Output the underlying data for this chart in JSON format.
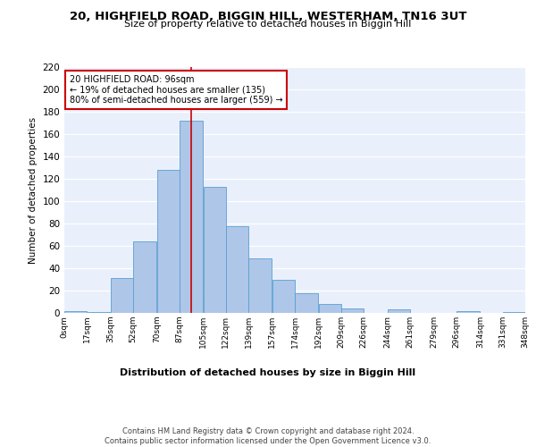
{
  "title": "20, HIGHFIELD ROAD, BIGGIN HILL, WESTERHAM, TN16 3UT",
  "subtitle": "Size of property relative to detached houses in Biggin Hill",
  "xlabel": "Distribution of detached houses by size in Biggin Hill",
  "ylabel": "Number of detached properties",
  "bar_color": "#aec6e8",
  "bar_edge_color": "#5a9fd4",
  "background_color": "#eaf0fb",
  "grid_color": "#ffffff",
  "annotation_box_color": "#ffffff",
  "annotation_box_edge": "#cc0000",
  "vline_color": "#cc0000",
  "vline_x": 96,
  "annotation_text": "20 HIGHFIELD ROAD: 96sqm\n← 19% of detached houses are smaller (135)\n80% of semi-detached houses are larger (559) →",
  "bins": [
    0,
    17,
    35,
    52,
    70,
    87,
    105,
    122,
    139,
    157,
    174,
    192,
    209,
    226,
    244,
    261,
    279,
    296,
    314,
    331,
    348
  ],
  "bar_heights": [
    2,
    1,
    31,
    64,
    128,
    172,
    113,
    78,
    49,
    30,
    18,
    8,
    4,
    0,
    3,
    0,
    0,
    2,
    0,
    1
  ],
  "ylim": [
    0,
    220
  ],
  "yticks": [
    0,
    20,
    40,
    60,
    80,
    100,
    120,
    140,
    160,
    180,
    200,
    220
  ],
  "footer_text": "Contains HM Land Registry data © Crown copyright and database right 2024.\nContains public sector information licensed under the Open Government Licence v3.0.",
  "tick_labels": [
    "0sqm",
    "17sqm",
    "35sqm",
    "52sqm",
    "70sqm",
    "87sqm",
    "105sqm",
    "122sqm",
    "139sqm",
    "157sqm",
    "174sqm",
    "192sqm",
    "209sqm",
    "226sqm",
    "244sqm",
    "261sqm",
    "279sqm",
    "296sqm",
    "314sqm",
    "331sqm",
    "348sqm"
  ]
}
